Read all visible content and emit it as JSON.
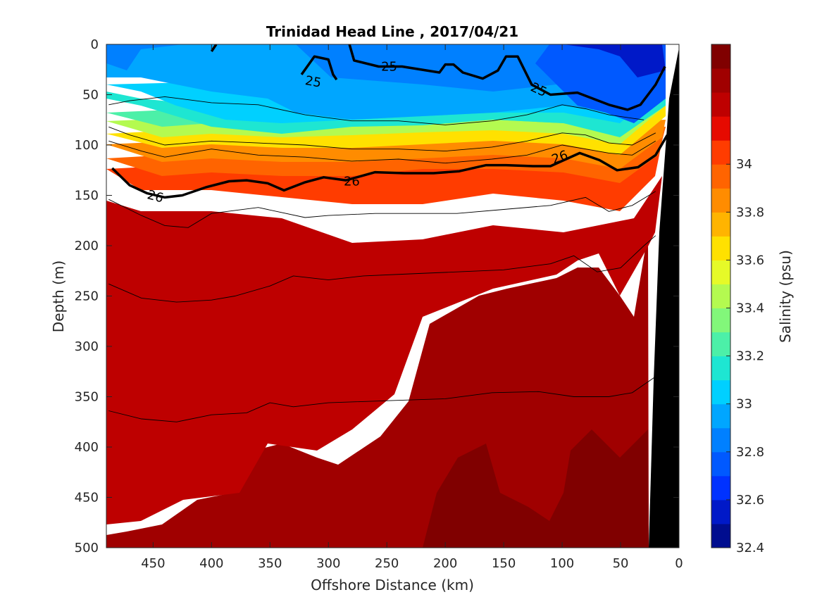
{
  "chart_data": {
    "type": "heatmap",
    "subtype": "filled-contour section",
    "title": "Trinidad Head Line , 2017/04/21",
    "xlabel": "Offshore Distance (km)",
    "ylabel": "Depth (m)",
    "xlim": [
      490,
      0
    ],
    "ylim": [
      500,
      0
    ],
    "x_reversed": true,
    "y_reversed": true,
    "x_ticks": [
      450,
      400,
      350,
      300,
      250,
      200,
      150,
      100,
      50,
      0
    ],
    "x_tick_labels": [
      "450",
      "400",
      "350",
      "300",
      "250",
      "200",
      "150",
      "100",
      "50",
      "0"
    ],
    "y_ticks": [
      0,
      50,
      100,
      150,
      200,
      250,
      300,
      350,
      400,
      450,
      500
    ],
    "y_tick_labels": [
      "0",
      "50",
      "100",
      "150",
      "200",
      "250",
      "300",
      "350",
      "400",
      "450",
      "500"
    ],
    "colorbar": {
      "label": "Salinity (psu)",
      "range": [
        32.4,
        34.5
      ],
      "ticks": [
        34,
        33.8,
        33.6,
        33.4,
        33.2,
        33,
        32.8,
        32.6,
        32.4
      ],
      "tick_labels": [
        "34",
        "33.8",
        "33.6",
        "33.4",
        "33.2",
        "33",
        "32.8",
        "32.6",
        "32.4"
      ],
      "levels": [
        32.4,
        32.5,
        32.6,
        32.7,
        32.8,
        32.9,
        33.0,
        33.1,
        33.2,
        33.3,
        33.4,
        33.5,
        33.6,
        33.7,
        33.8,
        33.9,
        34.0,
        34.1,
        34.2,
        34.3,
        34.4,
        34.5
      ],
      "colors": [
        "#000d8f",
        "#0019c8",
        "#0032ff",
        "#0059ff",
        "#0080ff",
        "#00a6ff",
        "#00d0ff",
        "#1ee6d2",
        "#4cf0a8",
        "#82f77a",
        "#b4fa50",
        "#e6fa28",
        "#ffe100",
        "#ffb400",
        "#ff8c00",
        "#ff6400",
        "#ff3c00",
        "#e60a00",
        "#be0000",
        "#a00000",
        "#800000"
      ]
    },
    "salinity_sections": [
      {
        "band": "32.4-32.9 (deep blue patches)",
        "depth_range_m": [
          0,
          65
        ],
        "distance_range_km": [
          10,
          120
        ]
      },
      {
        "band": "32.8-33.1 (surface blues)",
        "depth_range_m": [
          0,
          110
        ],
        "distance_range_km": [
          10,
          480
        ]
      },
      {
        "band": "33.1-33.6 (halocline)",
        "depth_range_m": [
          80,
          140
        ],
        "distance_range_km": [
          10,
          480
        ]
      },
      {
        "band": "33.7-33.9 (orange-red)",
        "depth_range_m": [
          130,
          180
        ],
        "distance_range_km": [
          10,
          480
        ]
      },
      {
        "band": "33.9-34.1 (red)",
        "depth_range_m": [
          170,
          500
        ],
        "distance_range_km": [
          10,
          480
        ]
      },
      {
        "band": "34.1-34.3 (dark red)",
        "depth_range_m": [
          200,
          500
        ],
        "distance_range_km": [
          10,
          400
        ]
      },
      {
        "band": "34.3-34.5 (darkest red)",
        "depth_range_m": [
          420,
          500
        ],
        "distance_range_km": [
          50,
          200
        ]
      }
    ],
    "density_contours": [
      {
        "label": "25",
        "bold": true,
        "points": [
          [
            323,
            30
          ],
          [
            312,
            12
          ],
          [
            300,
            15
          ],
          [
            296,
            30
          ],
          [
            293,
            35
          ]
        ]
      },
      {
        "label": "25",
        "bold": true,
        "points": [
          [
            400,
            7
          ],
          [
            396,
            0
          ]
        ]
      },
      {
        "label": "25",
        "bold": true,
        "points": [
          [
            282,
            0
          ],
          [
            278,
            16
          ],
          [
            257,
            22
          ],
          [
            237,
            22
          ],
          [
            205,
            28
          ],
          [
            200,
            20
          ],
          [
            193,
            20
          ],
          [
            185,
            28
          ],
          [
            168,
            34
          ],
          [
            155,
            26
          ],
          [
            148,
            12
          ],
          [
            138,
            12
          ],
          [
            126,
            40
          ],
          [
            110,
            50
          ],
          [
            87,
            48
          ],
          [
            60,
            60
          ],
          [
            44,
            65
          ],
          [
            33,
            60
          ],
          [
            20,
            40
          ],
          [
            12,
            22
          ]
        ]
      },
      {
        "label": "26",
        "bold": true,
        "points": [
          [
            485,
            123
          ],
          [
            470,
            140
          ],
          [
            455,
            148
          ],
          [
            440,
            152
          ],
          [
            425,
            150
          ],
          [
            405,
            142
          ],
          [
            385,
            136
          ],
          [
            370,
            135
          ],
          [
            352,
            138
          ],
          [
            338,
            145
          ],
          [
            320,
            137
          ],
          [
            304,
            132
          ],
          [
            285,
            135
          ],
          [
            260,
            127
          ],
          [
            235,
            128
          ],
          [
            210,
            128
          ],
          [
            188,
            126
          ],
          [
            165,
            120
          ],
          [
            148,
            120
          ],
          [
            125,
            121
          ],
          [
            110,
            121
          ],
          [
            85,
            108
          ],
          [
            68,
            115
          ],
          [
            53,
            125
          ],
          [
            35,
            122
          ],
          [
            20,
            110
          ],
          [
            10,
            90
          ]
        ]
      }
    ]
  }
}
